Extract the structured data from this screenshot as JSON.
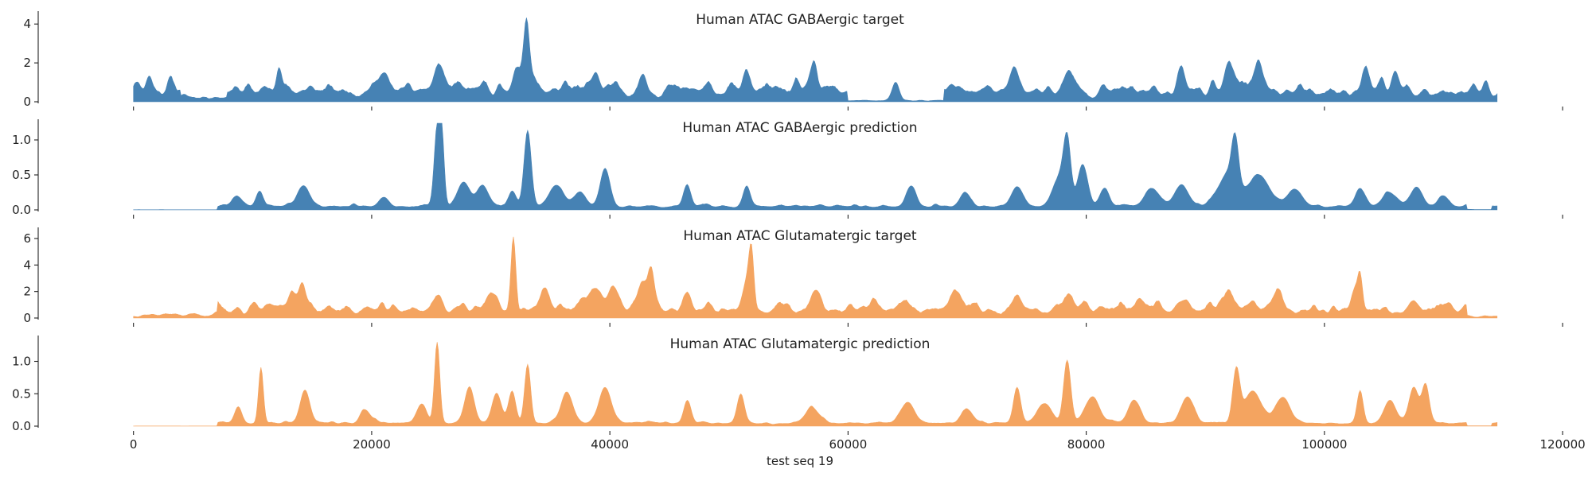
{
  "chart_data": {
    "type": "area",
    "xlabel": "test seq 19",
    "x_range": [
      0,
      114500
    ],
    "xlim": [
      -8000,
      122000
    ],
    "x_ticks": [
      0,
      20000,
      40000,
      60000,
      80000,
      100000,
      120000
    ],
    "x_tick_labels": [
      "0",
      "20000",
      "40000",
      "60000",
      "80000",
      "100000",
      "120000"
    ],
    "grid": false,
    "panels": [
      {
        "title": "Human ATAC GABAergic target",
        "color": "#4682b4",
        "ylim": [
          0,
          4.5
        ],
        "y_ticks": [
          0,
          2,
          4
        ],
        "y_tick_labels": [
          "0",
          "2",
          "4"
        ],
        "baseline": 0.75,
        "seed": 11,
        "noise": 0.55,
        "peaks": [
          [
            200,
            0.6,
            300
          ],
          [
            1300,
            0.8,
            250
          ],
          [
            3200,
            0.5,
            300
          ],
          [
            12200,
            1.5,
            220
          ],
          [
            20800,
            0.9,
            400
          ],
          [
            25700,
            1.3,
            400
          ],
          [
            32700,
            1.2,
            700
          ],
          [
            33000,
            2.8,
            220
          ],
          [
            38800,
            1.1,
            300
          ],
          [
            42800,
            0.9,
            300
          ],
          [
            51500,
            0.9,
            300
          ],
          [
            57000,
            1.1,
            300
          ],
          [
            64000,
            0.9,
            300
          ],
          [
            74000,
            1.2,
            300
          ],
          [
            78500,
            1.1,
            300
          ],
          [
            88000,
            1.3,
            300
          ],
          [
            92000,
            1.3,
            500
          ],
          [
            94500,
            1.0,
            500
          ],
          [
            103500,
            1.1,
            300
          ],
          [
            106000,
            1.0,
            300
          ]
        ],
        "dips": [
          [
            4000,
            7800,
            0.45
          ],
          [
            60000,
            68000,
            0.1
          ]
        ]
      },
      {
        "title": "Human ATAC GABAergic prediction",
        "color": "#4682b4",
        "ylim": [
          0,
          1.25
        ],
        "y_ticks": [
          0,
          0.5,
          1.0
        ],
        "y_tick_labels": [
          "0.0",
          "0.5",
          "1.0"
        ],
        "baseline": 0.06,
        "seed": 23,
        "noise": 0.35,
        "peaks": [
          [
            8700,
            0.15,
            400
          ],
          [
            10600,
            0.22,
            300
          ],
          [
            14300,
            0.3,
            500
          ],
          [
            21000,
            0.15,
            400
          ],
          [
            25500,
            1.12,
            250
          ],
          [
            25900,
            0.9,
            200
          ],
          [
            27700,
            0.35,
            500
          ],
          [
            29300,
            0.3,
            500
          ],
          [
            31800,
            0.22,
            300
          ],
          [
            33100,
            1.1,
            300
          ],
          [
            35500,
            0.3,
            600
          ],
          [
            37500,
            0.2,
            500
          ],
          [
            39600,
            0.55,
            400
          ],
          [
            46500,
            0.3,
            300
          ],
          [
            51500,
            0.3,
            300
          ],
          [
            65300,
            0.28,
            400
          ],
          [
            69800,
            0.2,
            400
          ],
          [
            74200,
            0.28,
            500
          ],
          [
            77800,
            0.4,
            600
          ],
          [
            78400,
            0.82,
            300
          ],
          [
            79700,
            0.6,
            400
          ],
          [
            81500,
            0.25,
            400
          ],
          [
            85500,
            0.25,
            600
          ],
          [
            88000,
            0.3,
            600
          ],
          [
            91800,
            0.42,
            800
          ],
          [
            92500,
            0.72,
            300
          ],
          [
            94500,
            0.45,
            900
          ],
          [
            97500,
            0.25,
            600
          ],
          [
            103000,
            0.25,
            400
          ],
          [
            105500,
            0.2,
            600
          ],
          [
            107700,
            0.28,
            500
          ],
          [
            110000,
            0.15,
            400
          ]
        ],
        "dips": [
          [
            0,
            7000,
            0.05
          ],
          [
            112000,
            114000,
            0.1
          ]
        ]
      },
      {
        "title": "Human ATAC Glutamatergic target",
        "color": "#f4a460",
        "ylim": [
          0,
          6.6
        ],
        "y_ticks": [
          0,
          2,
          4,
          6
        ],
        "y_tick_labels": [
          "0",
          "2",
          "4",
          "6"
        ],
        "baseline": 0.85,
        "seed": 37,
        "noise": 0.6,
        "peaks": [
          [
            13500,
            1.2,
            700
          ],
          [
            14200,
            1.5,
            250
          ],
          [
            25600,
            1.3,
            300
          ],
          [
            30000,
            1.3,
            400
          ],
          [
            31900,
            5.3,
            200
          ],
          [
            34500,
            1.5,
            400
          ],
          [
            38700,
            1.6,
            500
          ],
          [
            40200,
            1.8,
            400
          ],
          [
            42800,
            2.0,
            400
          ],
          [
            43500,
            2.6,
            250
          ],
          [
            46500,
            1.3,
            400
          ],
          [
            51500,
            2.4,
            400
          ],
          [
            51900,
            3.6,
            200
          ],
          [
            57200,
            1.6,
            400
          ],
          [
            69000,
            1.2,
            400
          ],
          [
            74200,
            1.0,
            400
          ],
          [
            78500,
            1.2,
            400
          ],
          [
            84500,
            1.0,
            400
          ],
          [
            88000,
            1.0,
            400
          ],
          [
            92000,
            1.3,
            400
          ],
          [
            96000,
            1.0,
            400
          ],
          [
            102500,
            1.7,
            300
          ],
          [
            103000,
            2.4,
            200
          ],
          [
            107500,
            0.9,
            400
          ]
        ],
        "dips": [
          [
            0,
            7000,
            0.4
          ],
          [
            112000,
            114500,
            0.2
          ]
        ]
      },
      {
        "title": "Human ATAC Glutamatergic prediction",
        "color": "#f4a460",
        "ylim": [
          0,
          1.35
        ],
        "y_ticks": [
          0,
          0.5,
          1.0
        ],
        "y_tick_labels": [
          "0.0",
          "0.5",
          "1.0"
        ],
        "baseline": 0.06,
        "seed": 53,
        "noise": 0.38,
        "peaks": [
          [
            8800,
            0.25,
            300
          ],
          [
            10700,
            0.85,
            200
          ],
          [
            14400,
            0.5,
            400
          ],
          [
            19500,
            0.2,
            400
          ],
          [
            24200,
            0.3,
            400
          ],
          [
            25500,
            1.22,
            220
          ],
          [
            28200,
            0.55,
            400
          ],
          [
            30500,
            0.45,
            400
          ],
          [
            31800,
            0.5,
            300
          ],
          [
            33100,
            0.9,
            250
          ],
          [
            36400,
            0.45,
            500
          ],
          [
            39600,
            0.55,
            500
          ],
          [
            46500,
            0.35,
            300
          ],
          [
            51000,
            0.45,
            300
          ],
          [
            57000,
            0.22,
            600
          ],
          [
            65000,
            0.3,
            600
          ],
          [
            70000,
            0.2,
            500
          ],
          [
            74200,
            0.55,
            300
          ],
          [
            76500,
            0.3,
            600
          ],
          [
            78400,
            0.95,
            300
          ],
          [
            80500,
            0.4,
            600
          ],
          [
            84000,
            0.35,
            500
          ],
          [
            88500,
            0.4,
            500
          ],
          [
            92600,
            0.8,
            300
          ],
          [
            94000,
            0.5,
            700
          ],
          [
            96500,
            0.4,
            600
          ],
          [
            103000,
            0.5,
            250
          ],
          [
            105500,
            0.35,
            500
          ],
          [
            107500,
            0.55,
            400
          ],
          [
            108500,
            0.6,
            300
          ]
        ],
        "dips": [
          [
            0,
            7000,
            0.05
          ],
          [
            112000,
            114000,
            0.1
          ]
        ]
      }
    ]
  }
}
